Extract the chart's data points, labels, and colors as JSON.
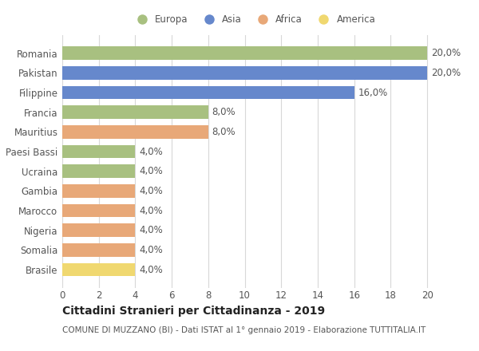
{
  "categories": [
    "Romania",
    "Pakistan",
    "Filippine",
    "Francia",
    "Mauritius",
    "Paesi Bassi",
    "Ucraina",
    "Gambia",
    "Marocco",
    "Nigeria",
    "Somalia",
    "Brasile"
  ],
  "values": [
    20.0,
    20.0,
    16.0,
    8.0,
    8.0,
    4.0,
    4.0,
    4.0,
    4.0,
    4.0,
    4.0,
    4.0
  ],
  "colors": [
    "#a8c080",
    "#6688cc",
    "#6688cc",
    "#a8c080",
    "#e8a878",
    "#a8c080",
    "#a8c080",
    "#e8a878",
    "#e8a878",
    "#e8a878",
    "#e8a878",
    "#f0d870"
  ],
  "legend_labels": [
    "Europa",
    "Asia",
    "Africa",
    "America"
  ],
  "legend_colors": [
    "#a8c080",
    "#6688cc",
    "#e8a878",
    "#f0d870"
  ],
  "xlim": [
    0,
    21
  ],
  "xticks": [
    0,
    2,
    4,
    6,
    8,
    10,
    12,
    14,
    16,
    18,
    20
  ],
  "title": "Cittadini Stranieri per Cittadinanza - 2019",
  "subtitle": "COMUNE DI MUZZANO (BI) - Dati ISTAT al 1° gennaio 2019 - Elaborazione TUTTITALIA.IT",
  "bar_height": 0.68,
  "background_color": "#ffffff",
  "grid_color": "#d8d8d8",
  "label_fontsize": 8.5,
  "ytick_fontsize": 8.5,
  "xtick_fontsize": 8.5,
  "title_fontsize": 10,
  "subtitle_fontsize": 7.5
}
